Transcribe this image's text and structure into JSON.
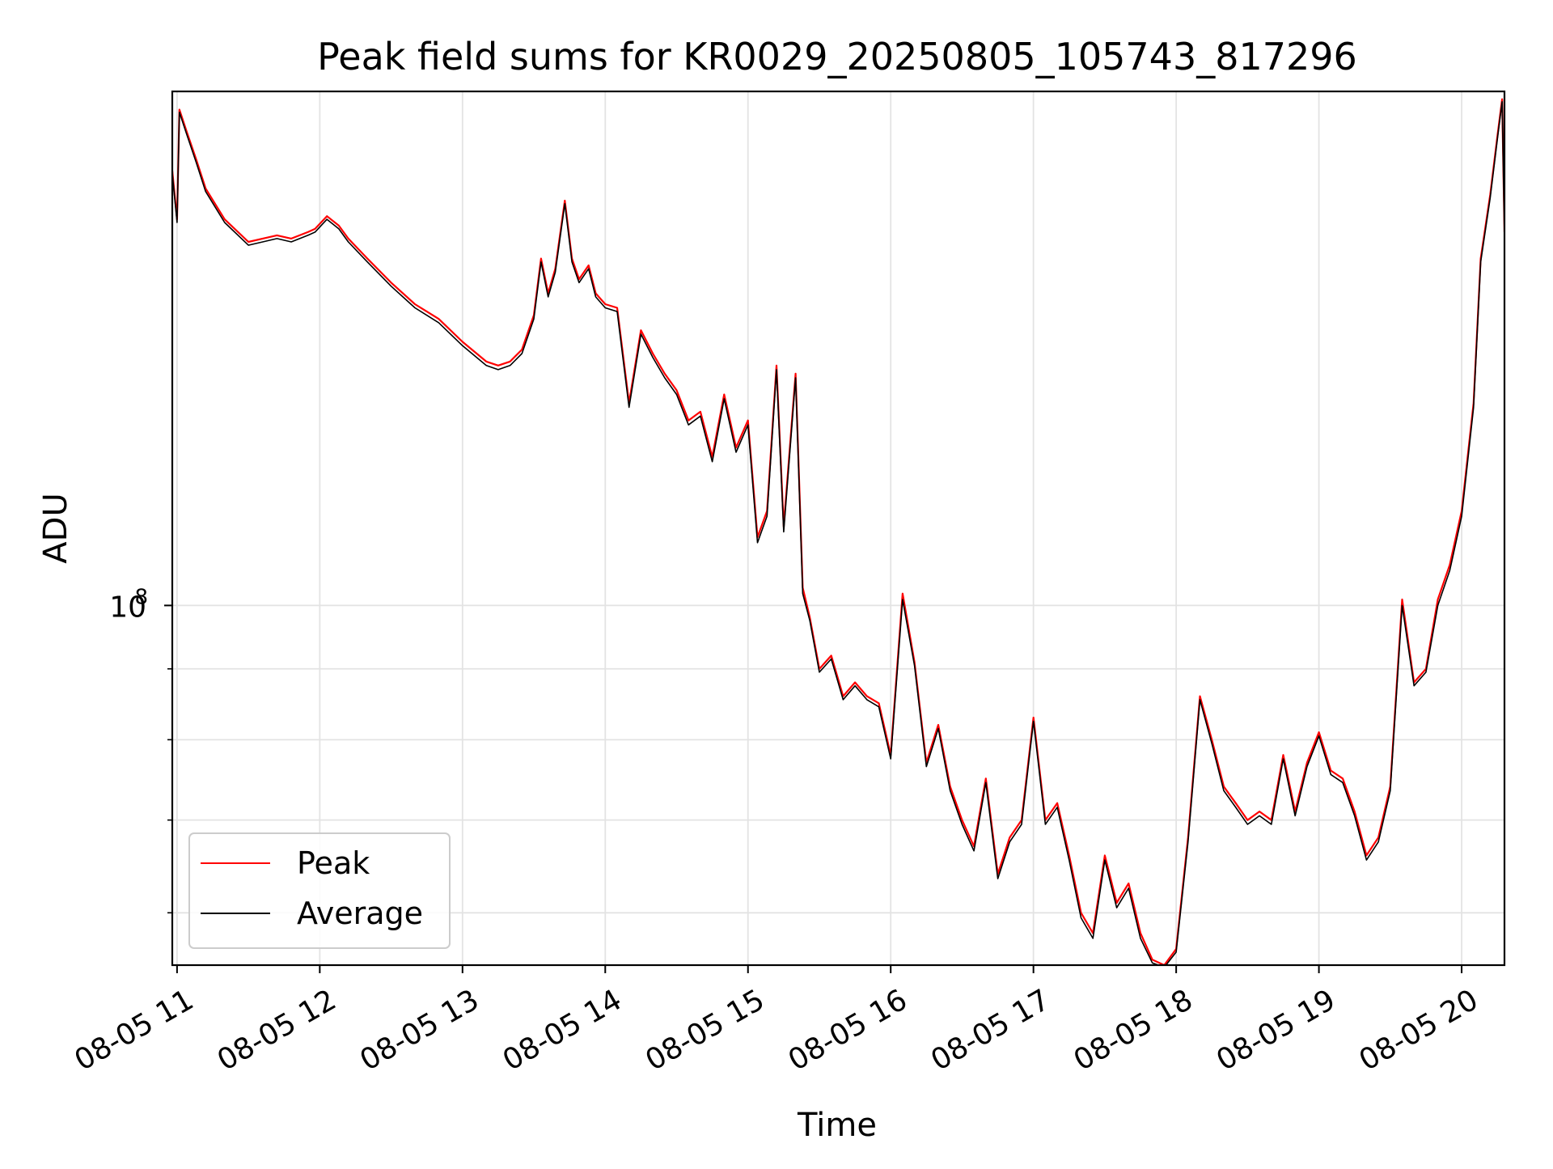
{
  "chart_data": {
    "type": "line",
    "title": "Peak field sums for KR0029_20250805_105743_817296",
    "xlabel": "Time",
    "ylabel": "ADU",
    "x_scale": "time",
    "y_scale": "log",
    "xlim": [
      "08-05 10:58",
      "08-05 20:18"
    ],
    "ylim": [
      55000000,
      235000000
    ],
    "x_ticks": [
      "08-05 11",
      "08-05 12",
      "08-05 13",
      "08-05 14",
      "08-05 15",
      "08-05 16",
      "08-05 17",
      "08-05 18",
      "08-05 19",
      "08-05 20"
    ],
    "y_major_ticks": [
      {
        "value": 100000000,
        "label": "10",
        "exponent": "8"
      }
    ],
    "y_minor_ticks": [
      60000000,
      70000000,
      80000000,
      90000000
    ],
    "grid": true,
    "legend_position": "lower-left",
    "x": [
      "08-05 10:58",
      "08-05 11:00",
      "08-05 11:01",
      "08-05 11:04",
      "08-05 11:08",
      "08-05 11:12",
      "08-05 11:20",
      "08-05 11:30",
      "08-05 11:36",
      "08-05 11:42",
      "08-05 11:48",
      "08-05 11:55",
      "08-05 11:58",
      "08-05 12:03",
      "08-05 12:08",
      "08-05 12:12",
      "08-05 12:20",
      "08-05 12:30",
      "08-05 12:40",
      "08-05 12:50",
      "08-05 13:00",
      "08-05 13:10",
      "08-05 13:15",
      "08-05 13:20",
      "08-05 13:25",
      "08-05 13:30",
      "08-05 13:33",
      "08-05 13:36",
      "08-05 13:39",
      "08-05 13:43",
      "08-05 13:46",
      "08-05 13:49",
      "08-05 13:53",
      "08-05 13:56",
      "08-05 14:00",
      "08-05 14:05",
      "08-05 14:10",
      "08-05 14:15",
      "08-05 14:20",
      "08-05 14:25",
      "08-05 14:30",
      "08-05 14:35",
      "08-05 14:40",
      "08-05 14:45",
      "08-05 14:50",
      "08-05 14:55",
      "08-05 15:00",
      "08-05 15:04",
      "08-05 15:08",
      "08-05 15:12",
      "08-05 15:15",
      "08-05 15:20",
      "08-05 15:23",
      "08-05 15:26",
      "08-05 15:30",
      "08-05 15:35",
      "08-05 15:40",
      "08-05 15:45",
      "08-05 15:50",
      "08-05 15:55",
      "08-05 16:00",
      "08-05 16:05",
      "08-05 16:10",
      "08-05 16:15",
      "08-05 16:20",
      "08-05 16:25",
      "08-05 16:30",
      "08-05 16:35",
      "08-05 16:40",
      "08-05 16:45",
      "08-05 16:50",
      "08-05 16:55",
      "08-05 17:00",
      "08-05 17:05",
      "08-05 17:10",
      "08-05 17:15",
      "08-05 17:20",
      "08-05 17:25",
      "08-05 17:30",
      "08-05 17:35",
      "08-05 17:40",
      "08-05 17:45",
      "08-05 17:50",
      "08-05 17:55",
      "08-05 18:00",
      "08-05 18:05",
      "08-05 18:10",
      "08-05 18:15",
      "08-05 18:20",
      "08-05 18:25",
      "08-05 18:30",
      "08-05 18:35",
      "08-05 18:40",
      "08-05 18:45",
      "08-05 18:50",
      "08-05 18:55",
      "08-05 19:00",
      "08-05 19:05",
      "08-05 19:10",
      "08-05 19:15",
      "08-05 19:20",
      "08-05 19:25",
      "08-05 19:30",
      "08-05 19:35",
      "08-05 19:40",
      "08-05 19:45",
      "08-05 19:50",
      "08-05 19:55",
      "08-05 20:00",
      "08-05 20:05",
      "08-05 20:08",
      "08-05 20:12",
      "08-05 20:15",
      "08-05 20:17",
      "08-05 20:18"
    ],
    "series": [
      {
        "name": "Peak",
        "color": "#ff0000",
        "values": [
          206000000,
          190000000,
          228000000,
          220000000,
          210000000,
          200000000,
          190000000,
          183000000,
          184000000,
          185000000,
          184000000,
          186000000,
          187000000,
          191000000,
          188000000,
          184000000,
          178000000,
          171000000,
          165000000,
          161000000,
          155000000,
          150000000,
          149000000,
          150000000,
          153000000,
          162000000,
          178000000,
          168000000,
          175000000,
          196000000,
          178000000,
          172000000,
          176000000,
          168000000,
          165000000,
          164000000,
          140000000,
          158000000,
          152000000,
          147000000,
          143000000,
          136000000,
          138000000,
          128000000,
          142000000,
          130000000,
          136000000,
          112000000,
          117000000,
          149000000,
          114000000,
          147000000,
          103000000,
          98000000,
          90000000,
          92000000,
          86000000,
          88000000,
          86000000,
          85000000,
          78000000,
          102000000,
          91000000,
          77000000,
          82000000,
          74000000,
          70000000,
          67000000,
          75000000,
          64000000,
          68000000,
          70000000,
          83000000,
          70000000,
          72000000,
          66000000,
          60000000,
          58000000,
          66000000,
          61000000,
          63000000,
          58000000,
          55500000,
          55000000,
          56500000,
          68000000,
          86000000,
          80000000,
          74000000,
          72000000,
          70000000,
          71000000,
          70000000,
          78000000,
          71000000,
          77000000,
          81000000,
          76000000,
          75000000,
          71000000,
          66000000,
          68000000,
          74000000,
          101000000,
          88000000,
          90000000,
          101000000,
          107000000,
          117000000,
          140000000,
          178000000,
          198000000,
          218000000,
          232000000,
          186000000
        ]
      },
      {
        "name": "Average",
        "color": "#000000",
        "values": [
          205000000,
          189000000,
          227000000,
          219000000,
          209000000,
          199000000,
          189000000,
          182000000,
          183000000,
          184000000,
          183000000,
          185000000,
          186000000,
          190000000,
          187000000,
          183000000,
          177000000,
          170000000,
          164000000,
          160000000,
          154000000,
          149000000,
          148000000,
          149000000,
          152000000,
          161000000,
          177000000,
          167000000,
          174000000,
          195000000,
          177000000,
          171000000,
          175000000,
          167000000,
          164000000,
          163000000,
          139000000,
          157000000,
          151000000,
          146000000,
          142000000,
          135000000,
          137000000,
          127000000,
          141000000,
          129000000,
          135000000,
          111000000,
          116000000,
          148000000,
          113000000,
          146000000,
          102000000,
          97500000,
          89500000,
          91500000,
          85500000,
          87500000,
          85500000,
          84500000,
          77500000,
          101000000,
          90500000,
          76500000,
          81500000,
          73500000,
          69500000,
          66500000,
          74500000,
          63500000,
          67500000,
          69500000,
          82500000,
          69500000,
          71500000,
          65500000,
          59500000,
          57500000,
          65500000,
          60500000,
          62500000,
          57500000,
          55200000,
          54800000,
          56200000,
          67500000,
          85500000,
          79500000,
          73500000,
          71500000,
          69500000,
          70500000,
          69500000,
          77500000,
          70500000,
          76500000,
          80500000,
          75500000,
          74500000,
          70500000,
          65500000,
          67500000,
          73500000,
          100000000,
          87500000,
          89500000,
          100000000,
          106000000,
          116000000,
          139000000,
          177000000,
          197000000,
          217000000,
          231000000,
          185000000
        ]
      }
    ]
  }
}
